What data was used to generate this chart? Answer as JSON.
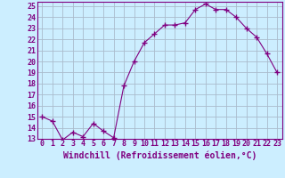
{
  "x": [
    0,
    1,
    2,
    3,
    4,
    5,
    6,
    7,
    8,
    9,
    10,
    11,
    12,
    13,
    14,
    15,
    16,
    17,
    18,
    19,
    20,
    21,
    22,
    23
  ],
  "y": [
    15.0,
    14.6,
    12.9,
    13.6,
    13.2,
    14.4,
    13.7,
    13.1,
    17.8,
    20.0,
    21.7,
    22.5,
    23.3,
    23.3,
    23.5,
    24.7,
    25.2,
    24.7,
    24.7,
    24.0,
    23.0,
    22.2,
    20.7,
    19.0
  ],
  "xlim": [
    -0.5,
    23.5
  ],
  "ylim": [
    13,
    25.4
  ],
  "yticks": [
    13,
    14,
    15,
    16,
    17,
    18,
    19,
    20,
    21,
    22,
    23,
    24,
    25
  ],
  "xticks": [
    0,
    1,
    2,
    3,
    4,
    5,
    6,
    7,
    8,
    9,
    10,
    11,
    12,
    13,
    14,
    15,
    16,
    17,
    18,
    19,
    20,
    21,
    22,
    23
  ],
  "xlabel": "Windchill (Refroidissement éolien,°C)",
  "line_color": "#800080",
  "marker": "+",
  "marker_size": 4,
  "bg_color": "#cceeff",
  "grid_color": "#aabbcc",
  "tick_label_fontsize": 6,
  "xlabel_fontsize": 7
}
